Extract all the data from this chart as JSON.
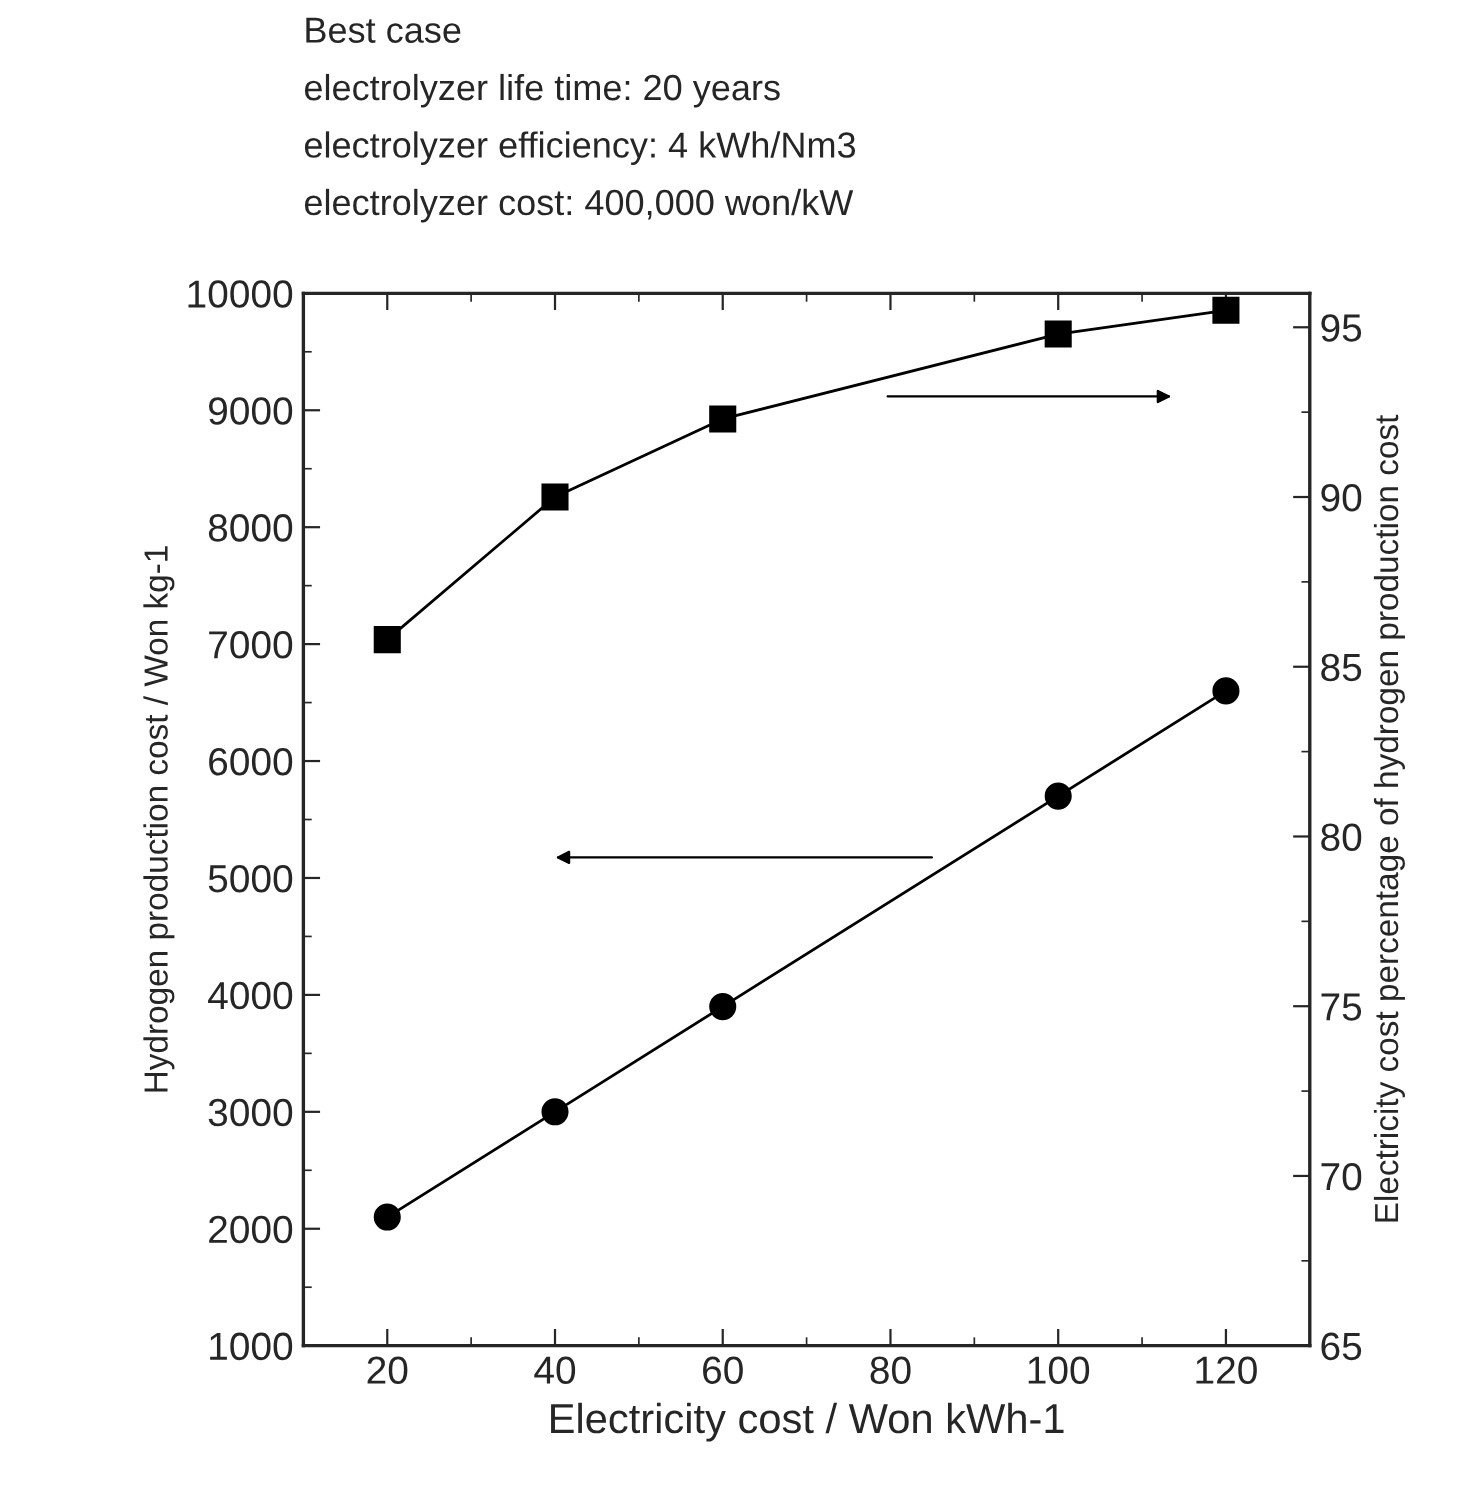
{
  "chart_data": {
    "type": "line",
    "title": "Best case",
    "annotations": [
      "electrolyzer life time: 20 years",
      "electrolyzer efficiency: 4 kWh/Nm3",
      "electrolyzer cost: 400,000 won/kW"
    ],
    "xlabel": "Electricity cost / Won kWh-1",
    "ylabel": "Hydrogen production cost / Won kg-1",
    "y2label": "Electricity cost percentage of hydrogen production cost",
    "x": [
      20,
      40,
      60,
      100,
      120
    ],
    "series": [
      {
        "color": "#000000",
        "marker": "circle",
        "values": [
          2100,
          3000,
          3900,
          5700,
          6600
        ]
      },
      {
        "color": "#000000",
        "marker": "square",
        "axis": "y2",
        "values": [
          85.8,
          90.0,
          92.3,
          94.8,
          95.5
        ]
      }
    ],
    "xlim": [
      10,
      130
    ],
    "xticks": [
      20,
      40,
      60,
      80,
      100,
      120
    ],
    "ylim": [
      1000,
      10000
    ],
    "yticks": [
      1000,
      2000,
      3000,
      4000,
      5000,
      6000,
      7000,
      8000,
      9000,
      10000
    ],
    "y2lim": [
      65,
      96
    ],
    "y2ticks": [
      65,
      70,
      75,
      80,
      85,
      90,
      95
    ],
    "grid": false,
    "legend": false,
    "line_style": "solid"
  }
}
